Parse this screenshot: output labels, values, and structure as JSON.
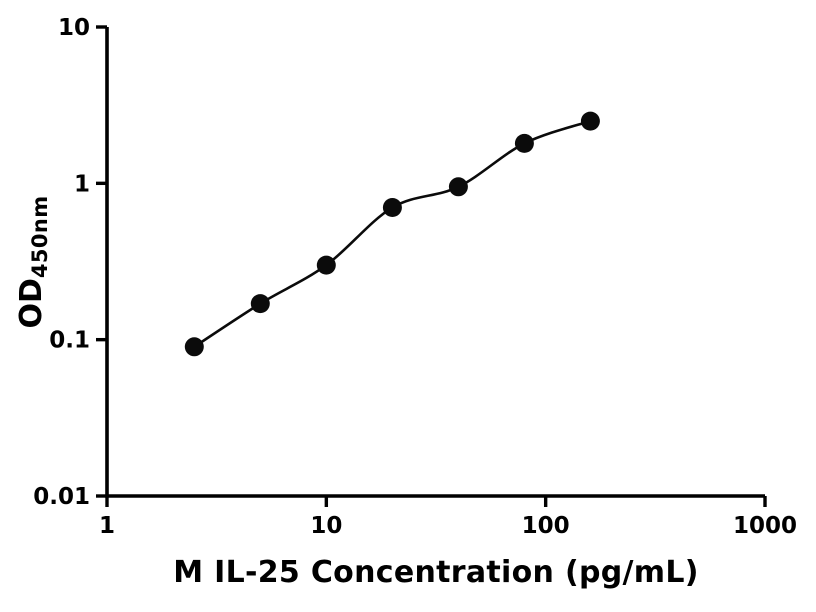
{
  "chart_data": {
    "type": "scatter",
    "title": "",
    "xlabel": "M IL-25 Concentration (pg/mL)",
    "ylabel_main": "OD",
    "ylabel_sub": "450nm",
    "xscale": "log",
    "yscale": "log",
    "xlim": [
      1,
      1000
    ],
    "ylim": [
      0.01,
      10
    ],
    "x_ticks": [
      1,
      10,
      100,
      1000
    ],
    "x_tick_labels": [
      "1",
      "10",
      "100",
      "1000"
    ],
    "y_ticks": [
      0.01,
      0.1,
      1,
      10
    ],
    "y_tick_labels": [
      "0.01",
      "0.1",
      "1",
      "10"
    ],
    "x": [
      2.5,
      5,
      10,
      20,
      40,
      80,
      160
    ],
    "y": [
      0.09,
      0.17,
      0.3,
      0.7,
      0.95,
      1.8,
      2.5
    ],
    "grid": false,
    "legend": "none",
    "marker_color": "#0b0b0b",
    "line_color": "#0b0b0b"
  }
}
